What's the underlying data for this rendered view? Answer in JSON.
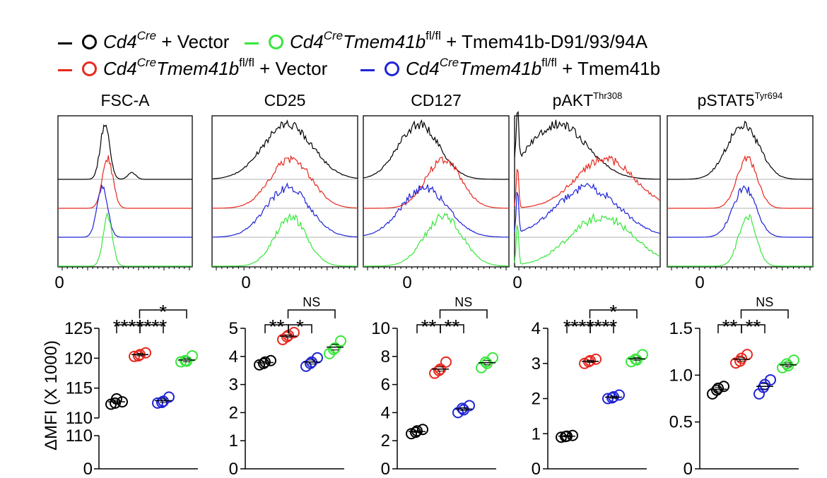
{
  "legend": {
    "item1": {
      "color": "#000000",
      "gene": "Cd4",
      "gene_sup": "Cre",
      "rest": " + Vector"
    },
    "item2": {
      "color": "#39e63c",
      "gene": "Cd4",
      "gene_sup": "Cre",
      "gene2": "Tmem41b",
      "gene2_sup": "fl/fl",
      "rest": " + Tmem41b-D91/93/94A"
    },
    "item3": {
      "color": "#e8281e",
      "gene": "Cd4",
      "gene_sup": "Cre",
      "gene2": "Tmem41b",
      "gene2_sup": "fl/fl",
      "rest": " + Vector"
    },
    "item4": {
      "color": "#1f23d6",
      "gene": "Cd4",
      "gene_sup": "Cre",
      "gene2": "Tmem41b",
      "gene2_sup": "fl/fl",
      "rest": " + Tmem41b"
    }
  },
  "panel_titles": {
    "p1": {
      "main": "FSC-A",
      "sup": ""
    },
    "p2": {
      "main": "CD25",
      "sup": ""
    },
    "p3": {
      "main": "CD127",
      "sup": ""
    },
    "p4": {
      "main": "pAKT",
      "sup": "Thr308"
    },
    "p5": {
      "main": "pSTAT5",
      "sup": "Tyr694"
    }
  },
  "chart_data": [
    {
      "type": "histogram",
      "title": "FSC-A",
      "xtick": "0",
      "series": [
        {
          "name": "Cd4Cre + Vector",
          "color": "#000000",
          "peak": 0.35,
          "width": 0.035,
          "shoulder": 0.55
        },
        {
          "name": "Cd4Cre Tmem41b fl/fl + Vector",
          "color": "#e8281e",
          "peak": 0.37,
          "width": 0.04
        },
        {
          "name": "Cd4Cre Tmem41b fl/fl + Tmem41b",
          "color": "#1f23d6",
          "peak": 0.33,
          "width": 0.04
        },
        {
          "name": "Cd4Cre Tmem41b fl/fl + Tmem41b-D91/93/94A",
          "color": "#39e63c",
          "peak": 0.37,
          "width": 0.035
        }
      ]
    },
    {
      "type": "histogram",
      "title": "CD25",
      "xtick": "0",
      "series": [
        {
          "name": "Cd4Cre + Vector",
          "color": "#000000",
          "peak": 0.52,
          "width": 0.17
        },
        {
          "name": "Cd4Cre Tmem41b fl/fl + Vector",
          "color": "#e8281e",
          "peak": 0.54,
          "width": 0.14
        },
        {
          "name": "Cd4Cre Tmem41b fl/fl + Tmem41b",
          "color": "#1f23d6",
          "peak": 0.52,
          "width": 0.15
        },
        {
          "name": "Cd4Cre Tmem41b fl/fl + Tmem41b-D91/93/94A",
          "color": "#39e63c",
          "peak": 0.54,
          "width": 0.11
        }
      ]
    },
    {
      "type": "histogram",
      "title": "CD127",
      "xtick": "0",
      "series": [
        {
          "name": "Cd4Cre + Vector",
          "color": "#000000",
          "peak": 0.38,
          "width": 0.14
        },
        {
          "name": "Cd4Cre Tmem41b fl/fl + Vector",
          "color": "#e8281e",
          "peak": 0.55,
          "width": 0.12
        },
        {
          "name": "Cd4Cre Tmem41b fl/fl + Tmem41b",
          "color": "#1f23d6",
          "peak": 0.42,
          "width": 0.16
        },
        {
          "name": "Cd4Cre Tmem41b fl/fl + Tmem41b-D91/93/94A",
          "color": "#39e63c",
          "peak": 0.55,
          "width": 0.13
        }
      ]
    },
    {
      "type": "histogram",
      "title": "pAKT Thr308",
      "xtick": "0",
      "series": [
        {
          "name": "Cd4Cre + Vector",
          "color": "#000000",
          "peak": 0.3,
          "width": 0.2,
          "spike": 0.02
        },
        {
          "name": "Cd4Cre Tmem41b fl/fl + Vector",
          "color": "#e8281e",
          "peak": 0.62,
          "width": 0.2,
          "spike": 0.02
        },
        {
          "name": "Cd4Cre Tmem41b fl/fl + Tmem41b",
          "color": "#1f23d6",
          "peak": 0.5,
          "width": 0.22,
          "spike": 0.02
        },
        {
          "name": "Cd4Cre Tmem41b fl/fl + Tmem41b-D91/93/94A",
          "color": "#39e63c",
          "peak": 0.6,
          "width": 0.22,
          "spike": 0.02
        }
      ]
    },
    {
      "type": "histogram",
      "title": "pSTAT5 Tyr694",
      "xtick": "0",
      "series": [
        {
          "name": "Cd4Cre + Vector",
          "color": "#000000",
          "peak": 0.52,
          "width": 0.11
        },
        {
          "name": "Cd4Cre Tmem41b fl/fl + Vector",
          "color": "#e8281e",
          "peak": 0.55,
          "width": 0.07
        },
        {
          "name": "Cd4Cre Tmem41b fl/fl + Tmem41b",
          "color": "#1f23d6",
          "peak": 0.53,
          "width": 0.08
        },
        {
          "name": "Cd4Cre Tmem41b fl/fl + Tmem41b-D91/93/94A",
          "color": "#39e63c",
          "peak": 0.55,
          "width": 0.06
        }
      ]
    },
    {
      "type": "scatter",
      "title": "FSC-A",
      "ylabel": "ΔMFI (X 1000)",
      "axis_break": true,
      "ylim_top": [
        110,
        125
      ],
      "ylim_bottom": [
        0,
        110
      ],
      "yticks_top": [
        110,
        115,
        120,
        125
      ],
      "yticks_bottom": [
        0,
        110
      ],
      "groups": [
        {
          "color": "#000000",
          "values": [
            112.3,
            112.7,
            113.2,
            112.5
          ],
          "mean": 112.7,
          "sem": 0.3
        },
        {
          "color": "#e8281e",
          "values": [
            120.3,
            120.9,
            120.6,
            120.4
          ],
          "mean": 120.6,
          "sem": 0.2
        },
        {
          "color": "#1f23d6",
          "values": [
            112.5,
            113.5,
            112.8,
            112.6
          ],
          "mean": 112.9,
          "sem": 0.3
        },
        {
          "color": "#39e63c",
          "values": [
            119.4,
            120.4,
            119.5,
            119.6
          ],
          "mean": 119.7,
          "sem": 0.3
        }
      ],
      "comparisons": [
        {
          "a": 0,
          "b": 1,
          "label": "****",
          "level": 1
        },
        {
          "a": 1,
          "b": 2,
          "label": "****",
          "level": 1
        },
        {
          "a": 1,
          "b": 3,
          "label": "*",
          "level": 2
        }
      ]
    },
    {
      "type": "scatter",
      "title": "CD25",
      "ylim": [
        0,
        5
      ],
      "yticks": [
        0,
        1,
        2,
        3,
        4,
        5
      ],
      "groups": [
        {
          "color": "#000000",
          "values": [
            3.7,
            3.85,
            3.8,
            3.75
          ],
          "mean": 3.78,
          "sem": 0.05
        },
        {
          "color": "#e8281e",
          "values": [
            4.6,
            4.85,
            4.75,
            4.7
          ],
          "mean": 4.72,
          "sem": 0.05
        },
        {
          "color": "#1f23d6",
          "values": [
            3.65,
            3.95,
            3.8,
            3.75
          ],
          "mean": 3.8,
          "sem": 0.07
        },
        {
          "color": "#39e63c",
          "values": [
            4.1,
            4.55,
            4.3,
            4.25
          ],
          "mean": 4.33,
          "sem": 0.1
        }
      ],
      "comparisons": [
        {
          "a": 0,
          "b": 1,
          "label": "**",
          "level": 1
        },
        {
          "a": 1,
          "b": 2,
          "label": "*",
          "level": 1
        },
        {
          "a": 1,
          "b": 3,
          "label": "NS",
          "level": 2
        }
      ]
    },
    {
      "type": "scatter",
      "title": "CD127",
      "ylim": [
        0,
        10
      ],
      "yticks": [
        0,
        2,
        4,
        6,
        8,
        10
      ],
      "groups": [
        {
          "color": "#000000",
          "values": [
            2.5,
            2.8,
            2.7,
            2.6
          ],
          "mean": 2.65,
          "sem": 0.07
        },
        {
          "color": "#e8281e",
          "values": [
            6.8,
            7.6,
            7.1,
            7.0
          ],
          "mean": 7.1,
          "sem": 0.15
        },
        {
          "color": "#1f23d6",
          "values": [
            4.0,
            4.5,
            4.2,
            4.3
          ],
          "mean": 4.25,
          "sem": 0.1
        },
        {
          "color": "#39e63c",
          "values": [
            7.2,
            7.9,
            7.5,
            7.6
          ],
          "mean": 7.55,
          "sem": 0.15
        }
      ],
      "comparisons": [
        {
          "a": 0,
          "b": 1,
          "label": "**",
          "level": 1
        },
        {
          "a": 1,
          "b": 2,
          "label": "**",
          "level": 1
        },
        {
          "a": 1,
          "b": 3,
          "label": "NS",
          "level": 2
        }
      ]
    },
    {
      "type": "scatter",
      "title": "pAKT Thr308",
      "ylim": [
        0,
        4
      ],
      "yticks": [
        0,
        1,
        2,
        3,
        4
      ],
      "groups": [
        {
          "color": "#000000",
          "values": [
            0.9,
            0.95,
            0.93,
            0.92
          ],
          "mean": 0.93,
          "sem": 0.02
        },
        {
          "color": "#e8281e",
          "values": [
            3.0,
            3.12,
            3.08,
            3.05
          ],
          "mean": 3.06,
          "sem": 0.03
        },
        {
          "color": "#1f23d6",
          "values": [
            2.0,
            2.1,
            2.05,
            2.02
          ],
          "mean": 2.04,
          "sem": 0.03
        },
        {
          "color": "#39e63c",
          "values": [
            3.05,
            3.25,
            3.1,
            3.12
          ],
          "mean": 3.13,
          "sem": 0.04
        }
      ],
      "comparisons": [
        {
          "a": 0,
          "b": 1,
          "label": "****",
          "level": 1
        },
        {
          "a": 1,
          "b": 2,
          "label": "****",
          "level": 1
        },
        {
          "a": 1,
          "b": 3,
          "label": "*",
          "level": 2
        }
      ]
    },
    {
      "type": "scatter",
      "title": "pSTAT5 Tyr694",
      "ylim": [
        0,
        1.5
      ],
      "yticks": [
        0,
        0.5,
        1.0,
        1.5
      ],
      "yticklabels": [
        "0",
        "0.5",
        "1.0",
        "1.5"
      ],
      "groups": [
        {
          "color": "#000000",
          "values": [
            0.8,
            0.88,
            0.86,
            0.84
          ],
          "mean": 0.85,
          "sem": 0.02
        },
        {
          "color": "#e8281e",
          "values": [
            1.13,
            1.22,
            1.18,
            1.15
          ],
          "mean": 1.17,
          "sem": 0.02
        },
        {
          "color": "#1f23d6",
          "values": [
            0.8,
            0.95,
            0.9,
            0.87
          ],
          "mean": 0.88,
          "sem": 0.03
        },
        {
          "color": "#39e63c",
          "values": [
            1.08,
            1.16,
            1.1,
            1.12
          ],
          "mean": 1.11,
          "sem": 0.02
        }
      ],
      "comparisons": [
        {
          "a": 0,
          "b": 1,
          "label": "**",
          "level": 1
        },
        {
          "a": 1,
          "b": 2,
          "label": "**",
          "level": 1
        },
        {
          "a": 1,
          "b": 3,
          "label": "NS",
          "level": 2
        }
      ]
    }
  ]
}
